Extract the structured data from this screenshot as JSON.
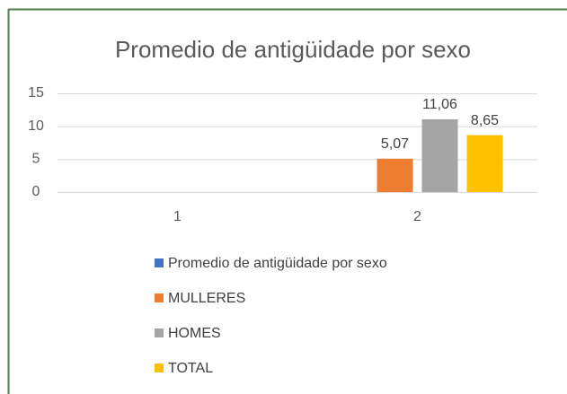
{
  "chart_data": {
    "type": "bar",
    "title": "Promedio de antigüidade por sexo",
    "categories": [
      "1",
      "2"
    ],
    "series": [
      {
        "name": "Promedio de antigüidade por sexo",
        "color": "#4472c4",
        "values": [
          null,
          null
        ]
      },
      {
        "name": "MULLERES",
        "color": "#ed7d31",
        "values": [
          null,
          5.07
        ],
        "value_labels": [
          null,
          "5,07"
        ]
      },
      {
        "name": "HOMES",
        "color": "#a5a5a5",
        "values": [
          null,
          11.06
        ],
        "value_labels": [
          null,
          "11,06"
        ]
      },
      {
        "name": "TOTAL",
        "color": "#ffc000",
        "values": [
          null,
          8.65
        ],
        "value_labels": [
          null,
          "8,65"
        ]
      }
    ],
    "ylim": [
      0,
      15
    ],
    "yticks": [
      0,
      5,
      10,
      15
    ],
    "grid": true,
    "legend": "bottom"
  }
}
